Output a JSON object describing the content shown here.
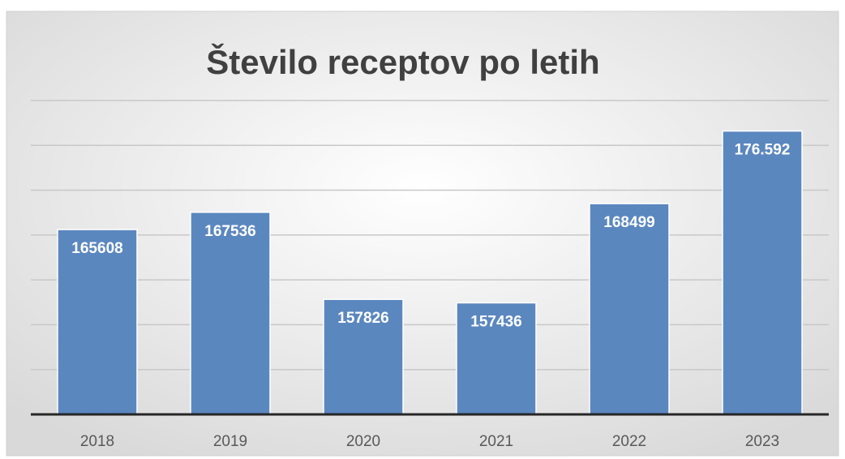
{
  "chart_data": {
    "type": "bar",
    "title": "Število receptov po letih",
    "categories": [
      "2018",
      "2019",
      "2020",
      "2021",
      "2022",
      "2023"
    ],
    "values": [
      165608,
      167536,
      157826,
      157436,
      168499,
      176592
    ],
    "value_labels": [
      "165608",
      "167536",
      "157826",
      "157436",
      "168499",
      "176.592"
    ],
    "color": "#5b87bf",
    "ylim": [
      145000,
      180000
    ],
    "yticks": [
      150000,
      155000,
      160000,
      165000,
      170000,
      175000,
      180000
    ],
    "grid": true
  }
}
